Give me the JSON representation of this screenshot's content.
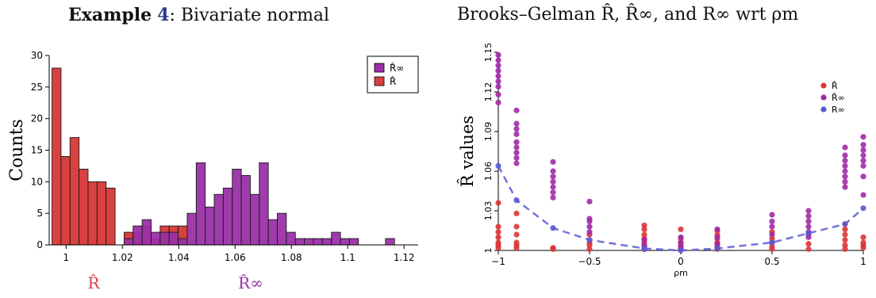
{
  "left_title": {
    "bold": "Example",
    "number": "4",
    "rest": ": Bivariate normal"
  },
  "right_title": "Brooks–Gelman R̂, R̂∞, and R∞ wrt ρm",
  "colors": {
    "red": "#d94040",
    "purple": "#9b30a8",
    "blue": "#5a5ad6",
    "red_point": "#dd3535",
    "purple_point": "#a02aa6"
  },
  "chart_data": [
    {
      "type": "bar",
      "subtype": "overlapping-histogram",
      "ylabel": "Counts",
      "ylim": [
        0,
        30
      ],
      "xlim": [
        0.994,
        1.125
      ],
      "yticks": [
        0,
        5,
        10,
        15,
        20,
        25,
        30
      ],
      "xticks": [
        1,
        1.02,
        1.04,
        1.06,
        1.08,
        1.1,
        1.12
      ],
      "xtick_labels": [
        "1",
        "1.02",
        "1.04",
        "1.06",
        "1.08",
        "1.1",
        "1.12"
      ],
      "bin_width": 0.0032,
      "legend": {
        "position": "top-right",
        "entries": [
          "R̂∞",
          "R̂"
        ]
      },
      "series": [
        {
          "name": "R̂",
          "bin_starts": [
            0.995,
            0.9982,
            1.0014,
            1.0046,
            1.0078,
            1.011,
            1.0142,
            1.0174,
            1.0206,
            1.0238,
            1.027,
            1.0302,
            1.0334,
            1.0366,
            1.0398
          ],
          "values": [
            28,
            14,
            17,
            12,
            10,
            10,
            9,
            0,
            2,
            2,
            3,
            1,
            3,
            3,
            3
          ]
        },
        {
          "name": "R̂∞",
          "bin_starts": [
            1.0206,
            1.0238,
            1.027,
            1.0302,
            1.0334,
            1.0366,
            1.0398,
            1.043,
            1.0462,
            1.0494,
            1.0526,
            1.0558,
            1.059,
            1.0622,
            1.0654,
            1.0686,
            1.0718,
            1.075,
            1.0782,
            1.0814,
            1.0846,
            1.0878,
            1.091,
            1.0942,
            1.0974,
            1.1006,
            1.1038,
            1.1134
          ],
          "values": [
            1,
            3,
            4,
            2,
            2,
            2,
            1,
            5,
            13,
            6,
            8,
            9,
            12,
            11,
            8,
            13,
            4,
            5,
            2,
            1,
            1,
            1,
            1,
            2,
            1,
            1,
            0,
            1
          ]
        }
      ],
      "below_axis_labels": [
        {
          "text": "R̂",
          "color": "#d94040"
        },
        {
          "text": "R̂∞",
          "color": "#9b30a8"
        }
      ]
    },
    {
      "type": "scatter",
      "xlabel": "ρm",
      "ylabel": "R̂ values",
      "xlim": [
        -1,
        1
      ],
      "ylim": [
        1.0,
        1.15
      ],
      "xticks": [
        -1,
        -0.5,
        0,
        0.5,
        1
      ],
      "xtick_labels": [
        "−1",
        "−0.5",
        "0",
        "0.5",
        "1"
      ],
      "yticks": [
        1,
        1.03,
        1.06,
        1.09,
        1.12,
        1.15
      ],
      "ytick_labels": [
        "1",
        "1.03",
        "1.06",
        "1.09",
        "1.12",
        "1.15"
      ],
      "legend": {
        "position": "top-right",
        "entries": [
          "R̂",
          "R̂∞",
          "R∞"
        ]
      },
      "series": [
        {
          "name": "R̂",
          "points": [
            [
              -1,
              1.002
            ],
            [
              -1,
              1.004
            ],
            [
              -1,
              1.006
            ],
            [
              -1,
              1.01
            ],
            [
              -1,
              1.014
            ],
            [
              -1,
              1.018
            ],
            [
              -1,
              1.036
            ],
            [
              -0.9,
              1.002
            ],
            [
              -0.9,
              1.004
            ],
            [
              -0.9,
              1.006
            ],
            [
              -0.9,
              1.012
            ],
            [
              -0.9,
              1.018
            ],
            [
              -0.9,
              1.028
            ],
            [
              -0.7,
              1.001
            ],
            [
              -0.7,
              1.002
            ],
            [
              -0.5,
              1.001
            ],
            [
              -0.5,
              1.004
            ],
            [
              -0.5,
              1.006
            ],
            [
              -0.5,
              1.012
            ],
            [
              -0.2,
              1.001
            ],
            [
              -0.2,
              1.003
            ],
            [
              -0.2,
              1.006
            ],
            [
              -0.2,
              1.009
            ],
            [
              -0.2,
              1.012
            ],
            [
              -0.2,
              1.016
            ],
            [
              -0.2,
              1.019
            ],
            [
              0,
              1.001
            ],
            [
              0,
              1.004
            ],
            [
              0,
              1.006
            ],
            [
              0,
              1.009
            ],
            [
              0,
              1.016
            ],
            [
              0.2,
              1.001
            ],
            [
              0.2,
              1.004
            ],
            [
              0.2,
              1.006
            ],
            [
              0.2,
              1.009
            ],
            [
              0.2,
              1.012
            ],
            [
              0.2,
              1.015
            ],
            [
              0.5,
              1.001
            ],
            [
              0.5,
              1.003
            ],
            [
              0.5,
              1.006
            ],
            [
              0.5,
              1.009
            ],
            [
              0.5,
              1.014
            ],
            [
              0.7,
              1.001
            ],
            [
              0.7,
              1.005
            ],
            [
              0.7,
              1.012
            ],
            [
              0.9,
              1.001
            ],
            [
              0.9,
              1.004
            ],
            [
              0.9,
              1.008
            ],
            [
              0.9,
              1.012
            ],
            [
              0.9,
              1.016
            ],
            [
              0.9,
              1.02
            ],
            [
              1,
              1.002
            ],
            [
              1,
              1.004
            ],
            [
              1,
              1.006
            ],
            [
              1,
              1.01
            ]
          ]
        },
        {
          "name": "R̂∞",
          "points": [
            [
              -1,
              1.112
            ],
            [
              -1,
              1.118
            ],
            [
              -1,
              1.124
            ],
            [
              -1,
              1.128
            ],
            [
              -1,
              1.132
            ],
            [
              -1,
              1.136
            ],
            [
              -1,
              1.14
            ],
            [
              -1,
              1.144
            ],
            [
              -1,
              1.148
            ],
            [
              -0.9,
              1.066
            ],
            [
              -0.9,
              1.07
            ],
            [
              -0.9,
              1.074
            ],
            [
              -0.9,
              1.078
            ],
            [
              -0.9,
              1.082
            ],
            [
              -0.9,
              1.088
            ],
            [
              -0.9,
              1.092
            ],
            [
              -0.9,
              1.096
            ],
            [
              -0.9,
              1.106
            ],
            [
              -0.7,
              1.04
            ],
            [
              -0.7,
              1.044
            ],
            [
              -0.7,
              1.048
            ],
            [
              -0.7,
              1.052
            ],
            [
              -0.7,
              1.056
            ],
            [
              -0.7,
              1.06
            ],
            [
              -0.7,
              1.067
            ],
            [
              -0.5,
              1.014
            ],
            [
              -0.5,
              1.018
            ],
            [
              -0.5,
              1.022
            ],
            [
              -0.5,
              1.024
            ],
            [
              -0.5,
              1.037
            ],
            [
              -0.2,
              1.001
            ],
            [
              -0.2,
              1.004
            ],
            [
              -0.2,
              1.008
            ],
            [
              0,
              1.001
            ],
            [
              0,
              1.003
            ],
            [
              0,
              1.006
            ],
            [
              0,
              1.01
            ],
            [
              0.2,
              1.002
            ],
            [
              0.2,
              1.005
            ],
            [
              0.2,
              1.01
            ],
            [
              0.2,
              1.016
            ],
            [
              0.5,
              1.006
            ],
            [
              0.5,
              1.012
            ],
            [
              0.5,
              1.018
            ],
            [
              0.5,
              1.022
            ],
            [
              0.5,
              1.027
            ],
            [
              0.7,
              1.01
            ],
            [
              0.7,
              1.014
            ],
            [
              0.7,
              1.018
            ],
            [
              0.7,
              1.022
            ],
            [
              0.7,
              1.026
            ],
            [
              0.7,
              1.03
            ],
            [
              0.9,
              1.048
            ],
            [
              0.9,
              1.052
            ],
            [
              0.9,
              1.056
            ],
            [
              0.9,
              1.06
            ],
            [
              0.9,
              1.064
            ],
            [
              0.9,
              1.068
            ],
            [
              0.9,
              1.072
            ],
            [
              0.9,
              1.078
            ],
            [
              1,
              1.042
            ],
            [
              1,
              1.056
            ],
            [
              1,
              1.064
            ],
            [
              1,
              1.068
            ],
            [
              1,
              1.072
            ],
            [
              1,
              1.076
            ],
            [
              1,
              1.08
            ],
            [
              1,
              1.086
            ]
          ]
        },
        {
          "name": "R∞",
          "points": [
            [
              -1,
              1.064
            ],
            [
              -0.9,
              1.038
            ],
            [
              -0.7,
              1.017
            ],
            [
              -0.5,
              1.008
            ],
            [
              -0.2,
              1.0015
            ],
            [
              0,
              1.0
            ],
            [
              0.2,
              1.0015
            ],
            [
              0.5,
              1.006
            ],
            [
              0.7,
              1.013
            ],
            [
              0.9,
              1.02
            ],
            [
              1,
              1.032
            ]
          ]
        }
      ]
    }
  ]
}
